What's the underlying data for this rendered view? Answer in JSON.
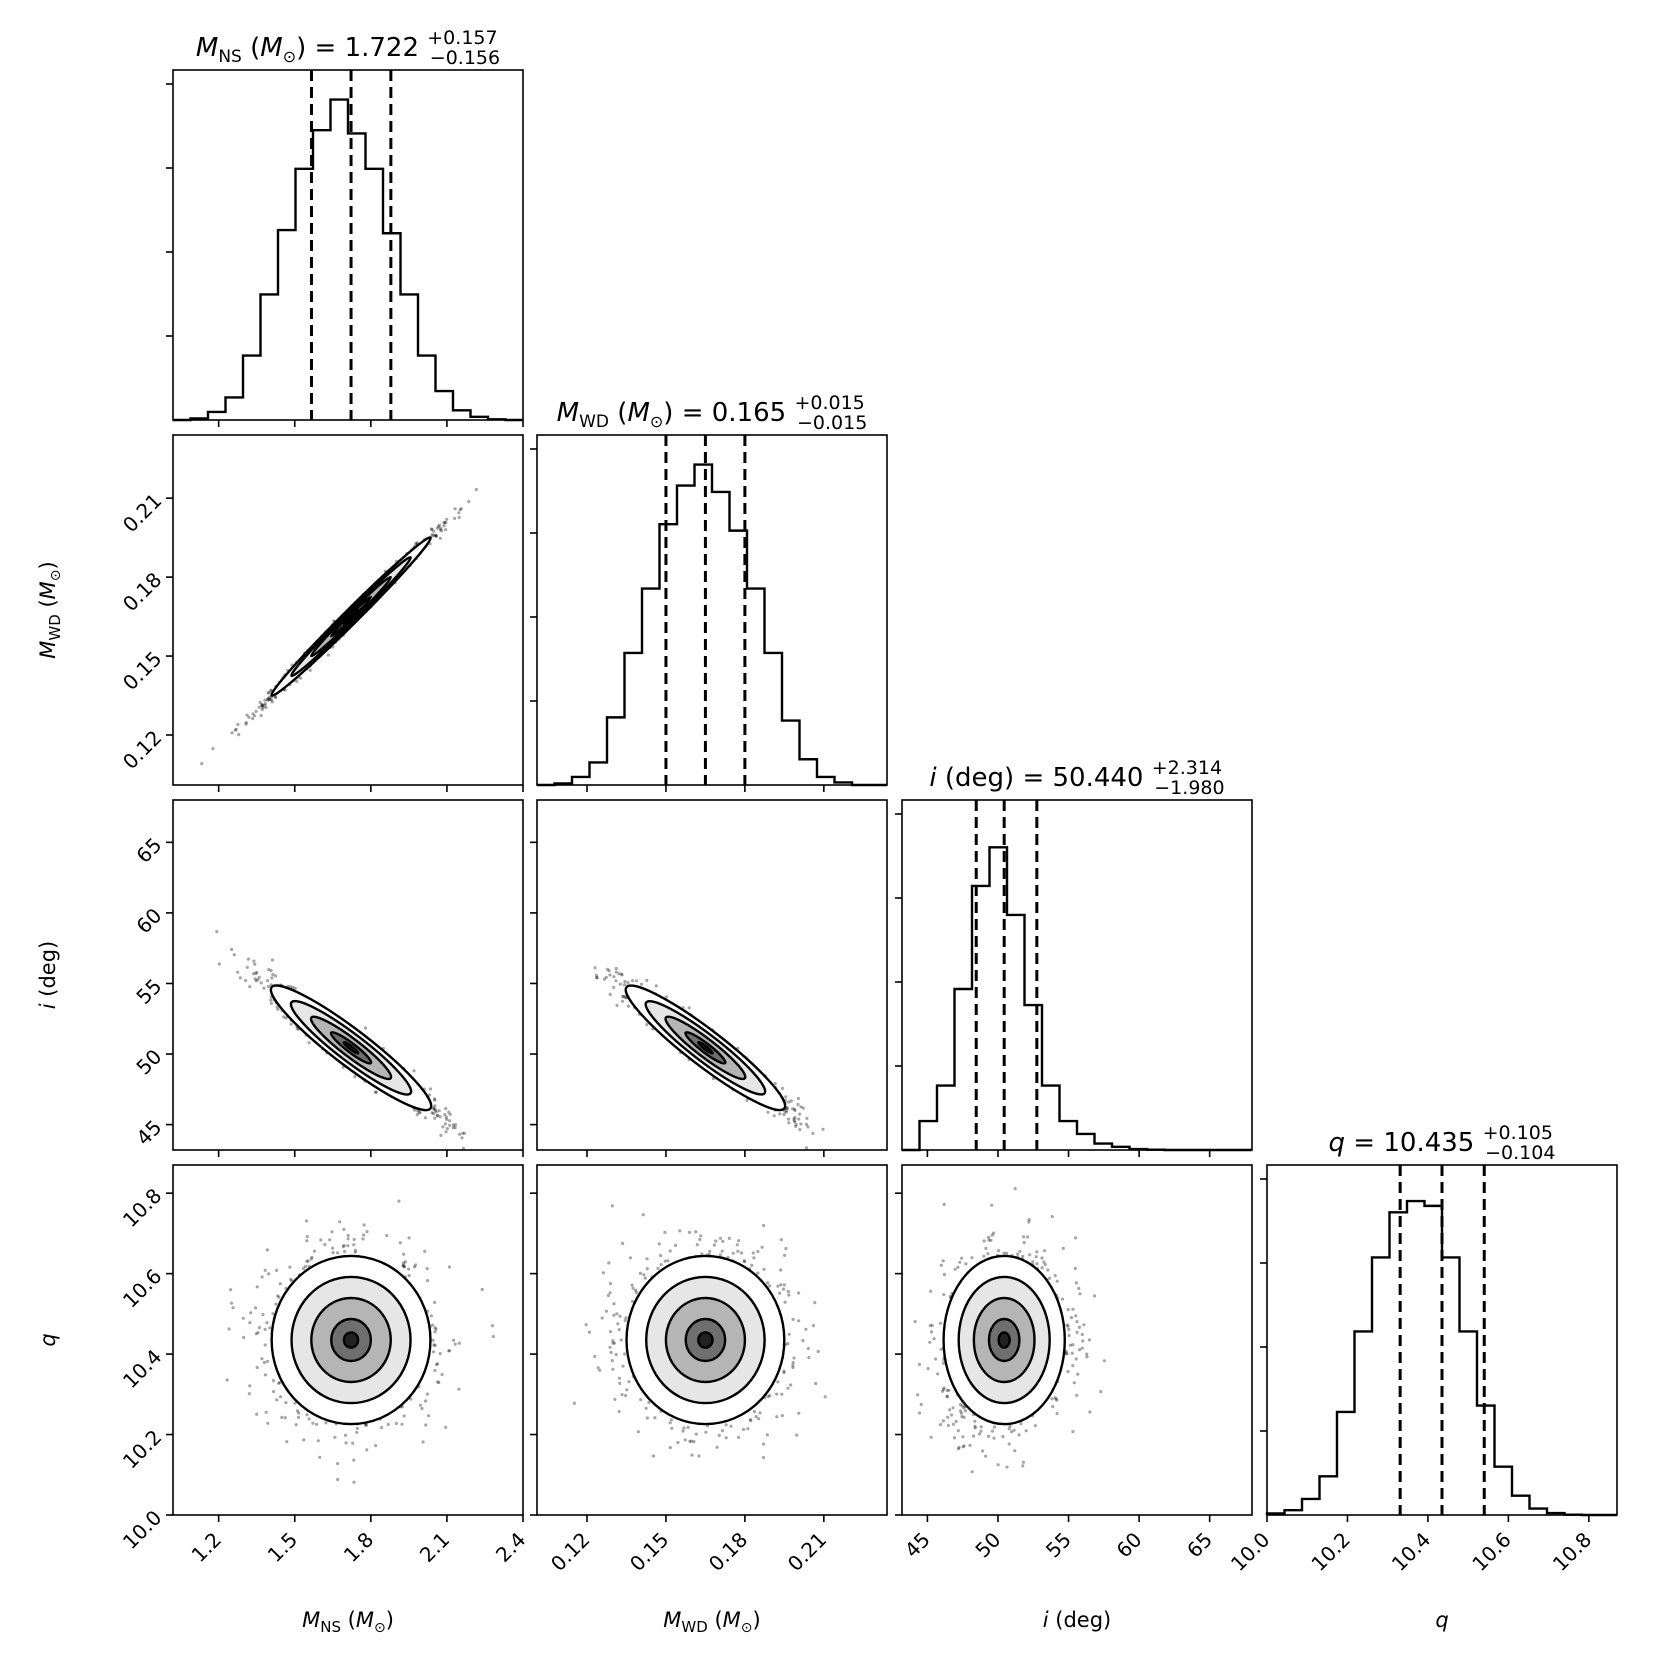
{
  "chart_data": {
    "type": "corner",
    "parameters": [
      {
        "key": "mns",
        "label": {
          "main": "M",
          "sub": "NS",
          "unit": "(M",
          "unitsub": "⊙",
          "close": ")"
        },
        "title": {
          "prefix": "= 1.722",
          "plus": "+0.157",
          "minus": "−0.156"
        },
        "median": 1.722,
        "plus": 0.157,
        "minus": 0.156,
        "range": [
          1.02,
          2.4
        ],
        "ticks": [
          "1.2",
          "1.5",
          "1.8",
          "2.1",
          "2.4"
        ],
        "hist": [
          0.0,
          0.005,
          0.025,
          0.07,
          0.2,
          0.39,
          0.59,
          0.78,
          0.9,
          0.995,
          0.89,
          0.78,
          0.58,
          0.39,
          0.2,
          0.09,
          0.03,
          0.01,
          0.002,
          0.0
        ]
      },
      {
        "key": "mwd",
        "label": {
          "main": "M",
          "sub": "WD",
          "unit": "(M",
          "unitsub": "⊙",
          "close": ")"
        },
        "title": {
          "prefix": "= 0.165",
          "plus": "+0.015",
          "minus": "−0.015"
        },
        "median": 0.165,
        "plus": 0.015,
        "minus": 0.015,
        "range": [
          0.101,
          0.234
        ],
        "ticks": [
          "0.12",
          "0.15",
          "0.18",
          "0.21"
        ],
        "hist": [
          0.0,
          0.005,
          0.025,
          0.07,
          0.21,
          0.41,
          0.61,
          0.81,
          0.93,
          0.995,
          0.91,
          0.79,
          0.61,
          0.41,
          0.2,
          0.08,
          0.025,
          0.008,
          0.0,
          0.0
        ]
      },
      {
        "key": "inc",
        "label": {
          "main": "i",
          "sub": "",
          "unit": "(deg)",
          "unitsub": "",
          "close": ""
        },
        "title": {
          "prefix": "(deg) = 50.440",
          "plus": "+2.314",
          "minus": "−1.980"
        },
        "median": 50.44,
        "plus": 2.314,
        "minus": 1.98,
        "range": [
          43.2,
          68.0
        ],
        "ticks": [
          "45",
          "50",
          "55",
          "60",
          "65"
        ],
        "hist": [
          0.0,
          0.09,
          0.2,
          0.5,
          0.82,
          0.94,
          0.73,
          0.45,
          0.2,
          0.09,
          0.05,
          0.02,
          0.01,
          0.003,
          0.001,
          0.0,
          0.0,
          0.0,
          0.0,
          0.0
        ]
      },
      {
        "key": "q",
        "label": {
          "main": "q",
          "sub": "",
          "unit": "",
          "unitsub": "",
          "close": ""
        },
        "title": {
          "prefix": "= 10.435",
          "plus": "+0.105",
          "minus": "−0.104"
        },
        "median": 10.435,
        "plus": 0.105,
        "minus": 0.104,
        "range": [
          10.0,
          10.87
        ],
        "ticks": [
          "10.0",
          "10.2",
          "10.4",
          "10.6",
          "10.8"
        ],
        "hist": [
          0.005,
          0.015,
          0.05,
          0.12,
          0.32,
          0.57,
          0.8,
          0.94,
          0.975,
          0.96,
          0.8,
          0.57,
          0.34,
          0.15,
          0.06,
          0.02,
          0.006,
          0.001,
          0.0,
          0.0
        ]
      }
    ],
    "correlations": {
      "mns-mwd": 0.995,
      "mns-inc": -0.96,
      "mwd-inc": -0.96,
      "mns-q": 0.0,
      "mwd-q": 0.0,
      "inc-q": 0.15
    },
    "quantile_lines": "dashed",
    "grid": false
  }
}
